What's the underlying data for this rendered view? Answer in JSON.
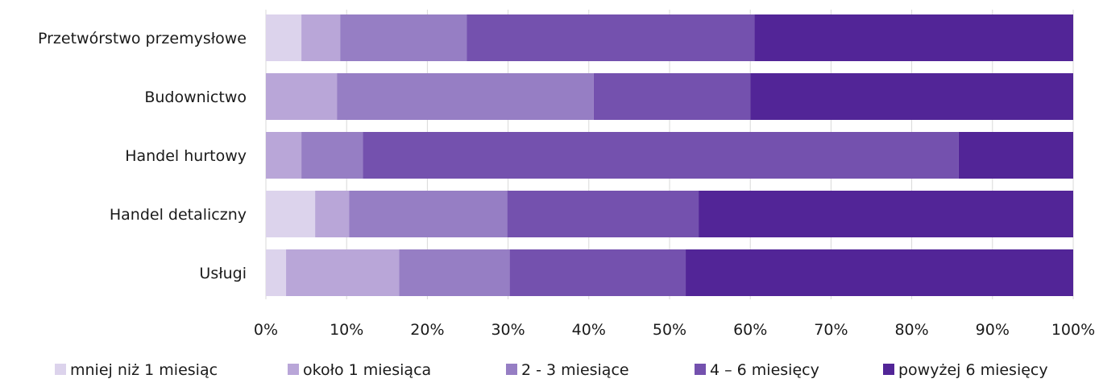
{
  "chart_data": {
    "type": "bar",
    "orientation": "horizontal",
    "stacked": "percent",
    "categories": [
      "Przetwórstwo przemysłowe",
      "Budownictwo",
      "Handel hurtowy",
      "Handel detaliczny",
      "Usługi"
    ],
    "series": [
      {
        "name": "mniej niż 1 miesiąc",
        "color": "#dcd3ec",
        "values": [
          4.4,
          0.0,
          0.0,
          6.1,
          2.5
        ]
      },
      {
        "name": "około 1 miesiąca",
        "color": "#b9a6d8",
        "values": [
          4.8,
          8.8,
          4.4,
          4.2,
          14.0
        ]
      },
      {
        "name": "2 - 3 miesiące",
        "color": "#967ec4",
        "values": [
          15.7,
          31.8,
          7.6,
          19.6,
          13.7
        ]
      },
      {
        "name": "4 – 6 miesięcy",
        "color": "#7451ae",
        "values": [
          35.6,
          19.4,
          73.8,
          23.7,
          21.8
        ]
      },
      {
        "name": "powyżej 6 miesięcy",
        "color": "#522597",
        "values": [
          39.5,
          40.0,
          14.2,
          46.4,
          48.0
        ]
      }
    ],
    "xlim": [
      0,
      100
    ],
    "x_ticks": [
      "0%",
      "10%",
      "20%",
      "30%",
      "40%",
      "50%",
      "60%",
      "70%",
      "80%",
      "90%",
      "100%"
    ],
    "xlabel": "",
    "ylabel": "",
    "title": "",
    "grid": "vertical",
    "legend": "bottom"
  }
}
